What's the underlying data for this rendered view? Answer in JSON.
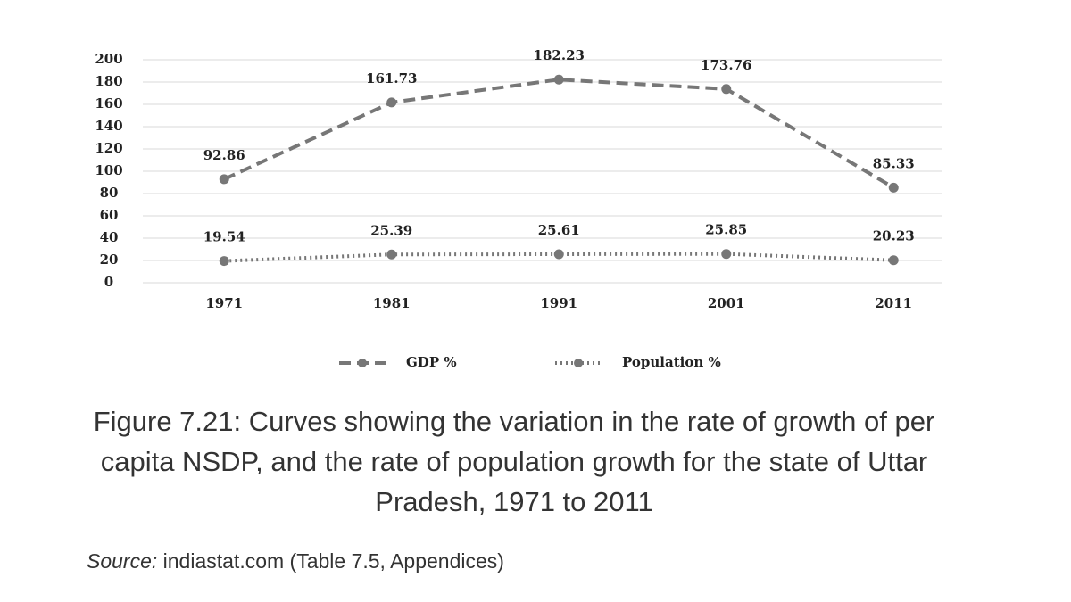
{
  "chart_data": {
    "type": "line",
    "categories": [
      "1971",
      "1981",
      "1991",
      "2001",
      "2011"
    ],
    "series": [
      {
        "name": "GDP %",
        "color": "#777777",
        "line_style": "dashed",
        "values": [
          92.86,
          161.73,
          182.23,
          173.76,
          85.33
        ]
      },
      {
        "name": "Population %",
        "color": "#777777",
        "line_style": "dotted",
        "values": [
          19.54,
          25.39,
          25.61,
          25.85,
          20.23
        ]
      }
    ],
    "ylim": [
      0,
      200
    ],
    "yticks": [
      0,
      20,
      40,
      60,
      80,
      100,
      120,
      140,
      160,
      180,
      200
    ],
    "grid": true,
    "caption": "Figure 7.21: Curves showing the variation in the rate of growth of per capita NSDP, and the rate of population growth for the state of Uttar Pradesh, 1971 to 2011",
    "source_label": "Source:",
    "source": "indiastat.com (Table 7.5, Appendices)"
  }
}
